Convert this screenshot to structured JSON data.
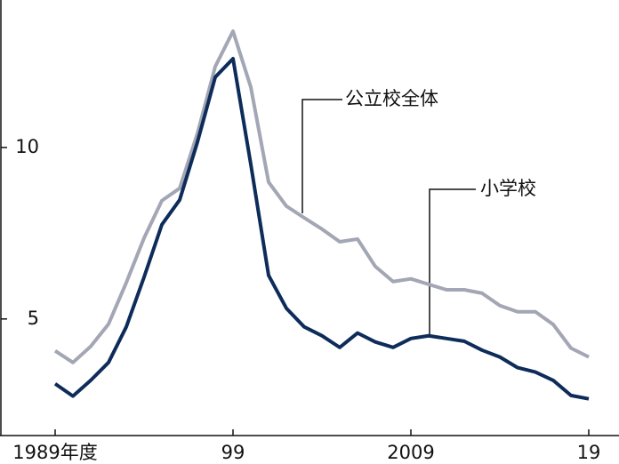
{
  "chart_data": {
    "type": "line",
    "x": [
      1989,
      1990,
      1991,
      1992,
      1993,
      1994,
      1995,
      1996,
      1997,
      1998,
      1999,
      2000,
      2001,
      2002,
      2003,
      2004,
      2005,
      2006,
      2007,
      2008,
      2009,
      2010,
      2011,
      2012,
      2013,
      2014,
      2015,
      2016,
      2017,
      2018,
      2019
    ],
    "series": [
      {
        "name": "公立校全体",
        "color": "#a3a6b4",
        "values": [
          4.07,
          3.73,
          4.2,
          4.85,
          6.06,
          7.36,
          8.45,
          8.81,
          10.41,
          12.36,
          13.39,
          11.76,
          8.99,
          8.29,
          7.95,
          7.62,
          7.25,
          7.33,
          6.53,
          6.09,
          6.17,
          6.01,
          5.85,
          5.85,
          5.75,
          5.39,
          5.21,
          5.21,
          4.84,
          4.15,
          3.89
        ]
      },
      {
        "name": "小学校",
        "color": "#0e2c5a",
        "values": [
          3.11,
          2.75,
          3.21,
          3.73,
          4.77,
          6.22,
          7.75,
          8.47,
          10.16,
          12.05,
          12.59,
          9.51,
          6.27,
          5.31,
          4.77,
          4.51,
          4.17,
          4.59,
          4.33,
          4.17,
          4.43,
          4.51,
          4.43,
          4.35,
          4.09,
          3.89,
          3.58,
          3.45,
          3.21,
          2.77,
          2.67
        ]
      }
    ],
    "xlim": [
      1985.9,
      2020.7
    ],
    "xticks": [
      {
        "value": 1989,
        "label": "1989年度"
      },
      {
        "value": 1999,
        "label": "99"
      },
      {
        "value": 2009,
        "label": "2009"
      },
      {
        "value": 2019,
        "label": "19"
      }
    ],
    "ylim": [
      1.6,
      14.3
    ],
    "yticks": [
      5,
      10
    ]
  }
}
